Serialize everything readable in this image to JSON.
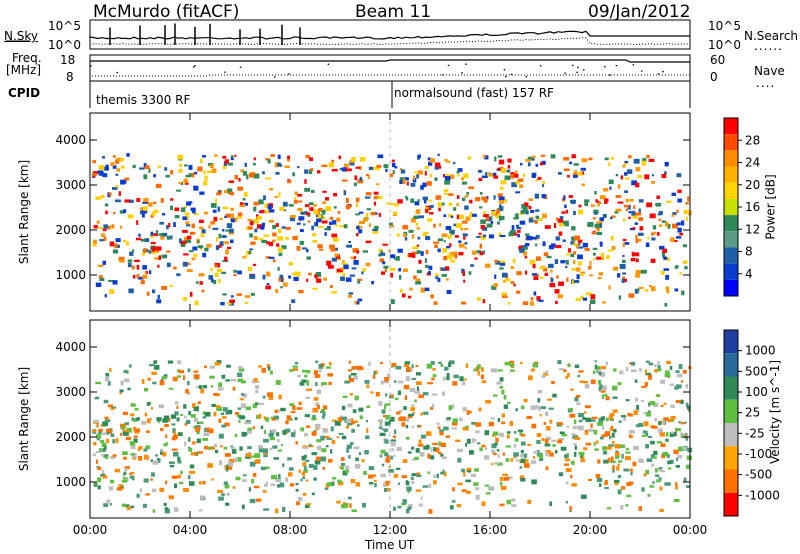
{
  "header": {
    "station": "McMurdo (fitACF)",
    "beam": "Beam 11",
    "date": "09/Jan/2012"
  },
  "noise_panel": {
    "left_label": "N.Sky",
    "left_ticks": [
      "10^5",
      "10^0"
    ],
    "right_ticks": [
      "10^5",
      "10^0"
    ],
    "right_label": "N.Search",
    "right_line_style": "......"
  },
  "freq_panel": {
    "left_label_1": "Freq.",
    "left_label_2": "[MHz]",
    "left_ticks": [
      "18",
      "8"
    ],
    "right_ticks": [
      "60",
      "0"
    ],
    "right_label": "Nave",
    "right_line_style": "...."
  },
  "cpid_panel": {
    "label": "CPID",
    "programs": [
      {
        "name": "themis 3300 RF"
      },
      {
        "name": "normalsound (fast) 157 RF"
      }
    ]
  },
  "x_axis": {
    "label": "Time UT",
    "ticks": [
      "00:00",
      "04:00",
      "08:00",
      "12:00",
      "16:00",
      "20:00",
      "00:00"
    ]
  },
  "chart_data": [
    {
      "type": "heatmap",
      "title": "",
      "ylabel": "Slant Range [km]",
      "xlabel": "",
      "y_ticks": [
        "1000",
        "2000",
        "3000",
        "4000"
      ],
      "ylim": [
        200,
        4600
      ],
      "colorbar": {
        "label": "Power [dB]",
        "ticks": [
          "28",
          "24",
          "20",
          "16",
          "12",
          "8",
          "4"
        ],
        "colors": [
          "#ff0000",
          "#ff4a00",
          "#ff8c00",
          "#ffb300",
          "#ffd400",
          "#c8e000",
          "#2e8b57",
          "#5a9a86",
          "#1f5fa8",
          "#0a3cd0",
          "#0000ff"
        ]
      }
    },
    {
      "type": "heatmap",
      "title": "",
      "ylabel": "Slant Range [km]",
      "xlabel": "Time UT",
      "y_ticks": [
        "1000",
        "2000",
        "3000",
        "4000"
      ],
      "ylim": [
        200,
        4600
      ],
      "colorbar": {
        "label": "Velocity [m s^-1]",
        "ticks": [
          "1000",
          "500",
          "100",
          "25",
          "-25",
          "-100",
          "-500",
          "-1000"
        ],
        "colors": [
          "#1f3fa0",
          "#2a6a9a",
          "#2e8b57",
          "#5fc040",
          "#bdbdbd",
          "#ffa500",
          "#ff7000",
          "#ff0000"
        ]
      }
    }
  ]
}
